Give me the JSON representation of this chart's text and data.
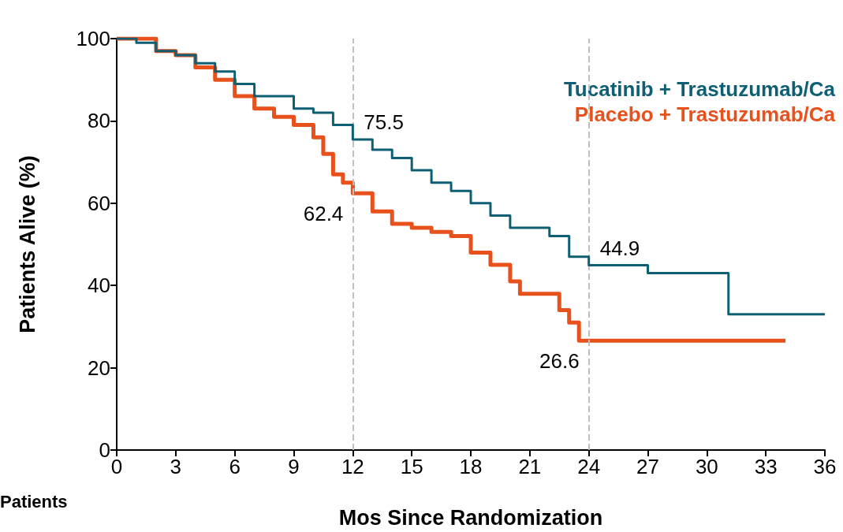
{
  "chart_data": {
    "type": "step",
    "xlabel": "Mos Since Randomization",
    "ylabel": "Patients Alive (%)",
    "series": [
      {
        "name": "Tucatinib + Trastuzumab/Ca",
        "color": "#0e5f73",
        "x": [
          0,
          1,
          2,
          3,
          4,
          5,
          6,
          7,
          8,
          9,
          10,
          11,
          12,
          13,
          14,
          15,
          16,
          17,
          18,
          19,
          20,
          21,
          22,
          23,
          24,
          27,
          30,
          31,
          31.1,
          36
        ],
        "values": [
          100,
          99,
          97,
          96,
          94,
          92,
          89,
          86,
          86,
          83,
          82,
          79,
          75.5,
          73,
          71,
          68,
          65,
          63,
          60,
          57,
          54,
          54,
          52,
          47,
          44.9,
          43,
          43,
          43,
          33,
          33
        ],
        "value_labels": [
          null,
          null,
          null,
          null,
          null,
          null,
          null,
          null,
          null,
          null,
          null,
          null,
          "75.5",
          null,
          null,
          null,
          null,
          null,
          null,
          null,
          null,
          null,
          null,
          null,
          "44.9",
          null,
          null,
          null,
          null,
          null
        ]
      },
      {
        "name": "Placebo + Trastuzumab/Ca",
        "color": "#e8501c",
        "x": [
          0,
          2,
          3,
          4,
          5,
          6,
          7,
          8,
          9,
          10,
          10.5,
          11,
          11.5,
          12,
          13,
          14,
          15,
          16,
          17,
          18,
          19,
          20,
          20.5,
          22,
          22.5,
          23,
          23.5,
          24,
          34
        ],
        "values": [
          100,
          97,
          96,
          93,
          90,
          86,
          83,
          81,
          79,
          76,
          72,
          67,
          65,
          62.4,
          58,
          55,
          54,
          53,
          52,
          48,
          45,
          41,
          38,
          38,
          34,
          31,
          26.6,
          26.6,
          26.6
        ],
        "value_labels": [
          null,
          null,
          null,
          null,
          null,
          null,
          null,
          null,
          null,
          null,
          null,
          null,
          null,
          "62.4",
          null,
          null,
          null,
          null,
          null,
          null,
          null,
          null,
          null,
          null,
          null,
          null,
          null,
          "26.6",
          null
        ]
      }
    ],
    "xlim": [
      0,
      36
    ],
    "xticks": [
      0,
      3,
      6,
      9,
      12,
      15,
      18,
      21,
      24,
      27,
      30,
      33,
      36
    ],
    "ylim": [
      0,
      100
    ],
    "yticks": [
      0,
      20,
      40,
      60,
      80,
      100
    ],
    "ref_lines": [
      {
        "axis": "x",
        "value": 12,
        "color": "#bfbfbf",
        "line_style": "dashed"
      },
      {
        "axis": "x",
        "value": 24,
        "color": "#bfbfbf",
        "line_style": "dashed"
      }
    ],
    "annotations": [
      "Patients"
    ],
    "legend": "top right",
    "grid": false
  }
}
